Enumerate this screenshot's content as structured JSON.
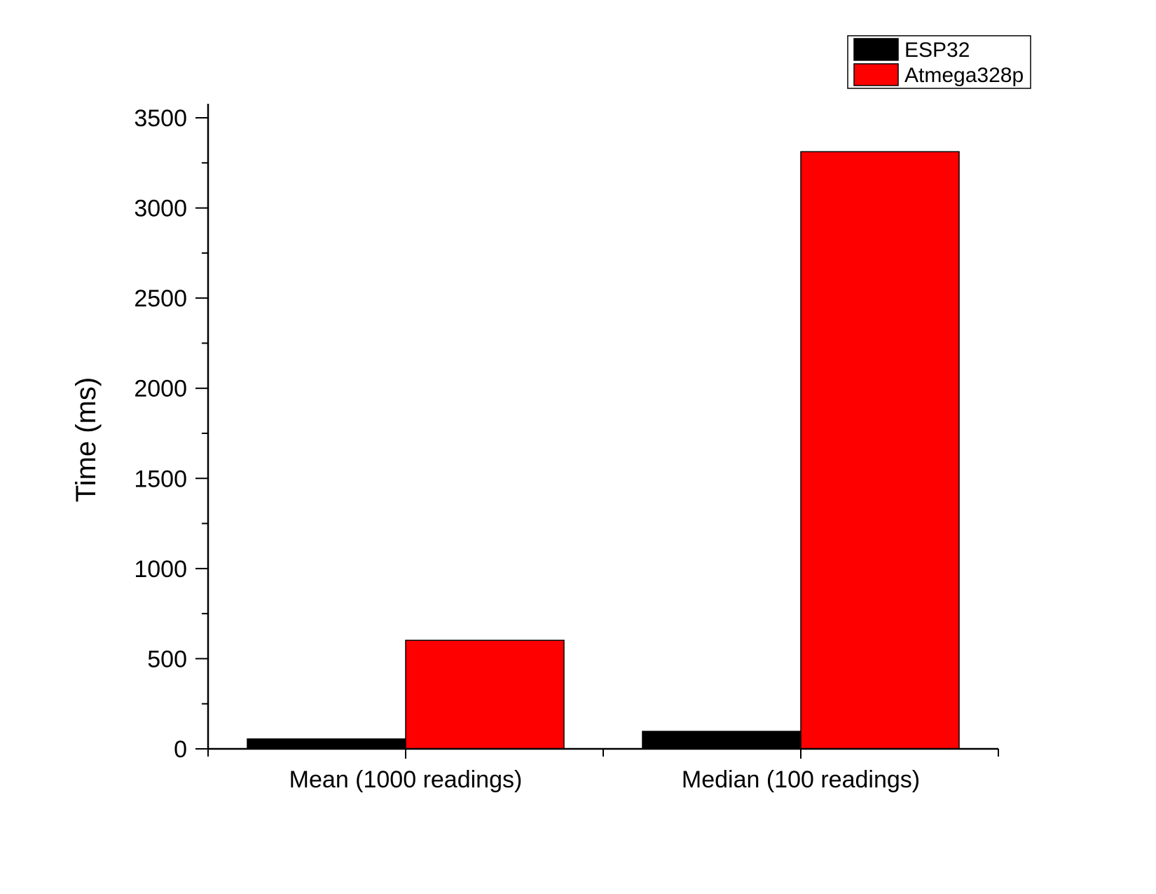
{
  "chart_data": {
    "type": "bar",
    "title": "",
    "xlabel": "",
    "ylabel": "Time (ms)",
    "categories": [
      "Mean (1000 readings)",
      "Median (100 readings)"
    ],
    "series": [
      {
        "name": "ESP32",
        "color": "#000000",
        "values": [
          55,
          97
        ]
      },
      {
        "name": "Atmega328p",
        "color": "#ff0000",
        "values": [
          602,
          3312
        ]
      }
    ],
    "ylim": [
      0,
      3500
    ],
    "yticks": [
      0,
      500,
      1000,
      1500,
      2000,
      2500,
      3000,
      3500
    ],
    "minor_tick_step": 250,
    "grid": false,
    "legend_position": "top-right"
  }
}
